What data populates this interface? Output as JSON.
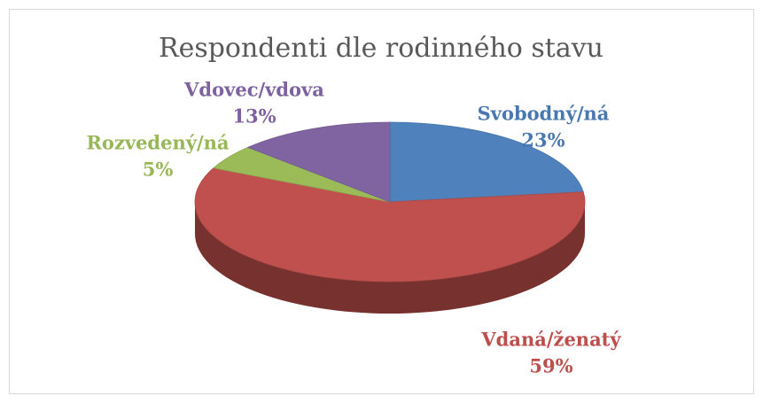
{
  "chart_data": {
    "type": "pie",
    "title": "Respondenti dle rodinného stavu",
    "categories": [
      "Svobodný/ná",
      "Vdaná/ženatý",
      "Rozvedený/ná",
      "Vdovec/vdova"
    ],
    "values": [
      23,
      59,
      5,
      13
    ],
    "value_labels": [
      "23%",
      "59%",
      "5%",
      "13%"
    ],
    "colors": [
      "#4f81bd",
      "#c0504d",
      "#9bbb59",
      "#8064a2"
    ]
  }
}
